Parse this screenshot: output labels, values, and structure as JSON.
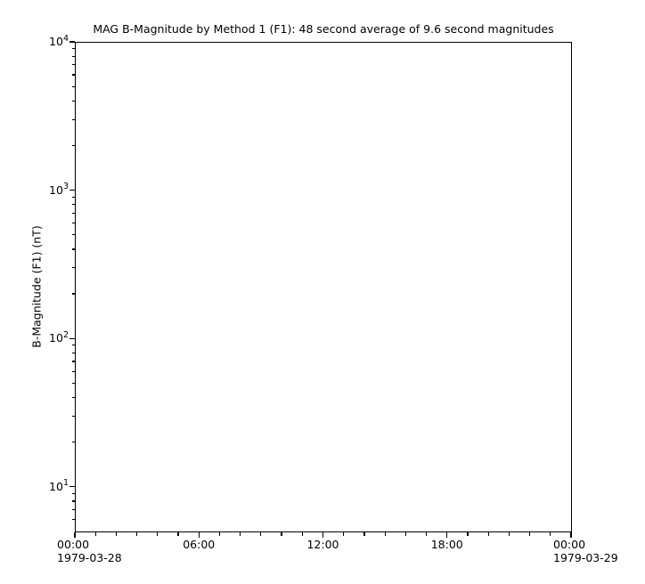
{
  "figure": {
    "background_color": "#ffffff",
    "foreground_color": "#000000"
  },
  "chart_data": {
    "type": "line",
    "title": "MAG  B-Magnitude by Method 1 (F1): 48 second average of 9.6 second magnitudes",
    "xlabel": "",
    "ylabel": "B-Magnitude (F1) (nT)",
    "series": [],
    "has_data": false,
    "grid": false,
    "legend": "none",
    "x_axis": {
      "scale": "time",
      "range_hours": [
        0,
        24
      ],
      "start_date": "1979-03-28",
      "end_date": "1979-03-29",
      "minor_tick_interval_hours": 1,
      "major_ticks": [
        {
          "hour": 0,
          "label": "00:00",
          "date": "1979-03-28"
        },
        {
          "hour": 6,
          "label": "06:00"
        },
        {
          "hour": 12,
          "label": "12:00"
        },
        {
          "hour": 18,
          "label": "18:00"
        },
        {
          "hour": 24,
          "label": "00:00",
          "date": "1979-03-29"
        }
      ]
    },
    "y_axis": {
      "scale": "log",
      "ylim": [
        5,
        10000
      ],
      "major_ticks": [
        10000,
        1000,
        100,
        10
      ],
      "major_tick_labels": [
        "10⁴",
        "10³",
        "10²",
        "10¹"
      ],
      "minor_tick_mantissas": [
        2,
        3,
        4,
        5,
        6,
        7,
        8,
        9
      ]
    }
  }
}
